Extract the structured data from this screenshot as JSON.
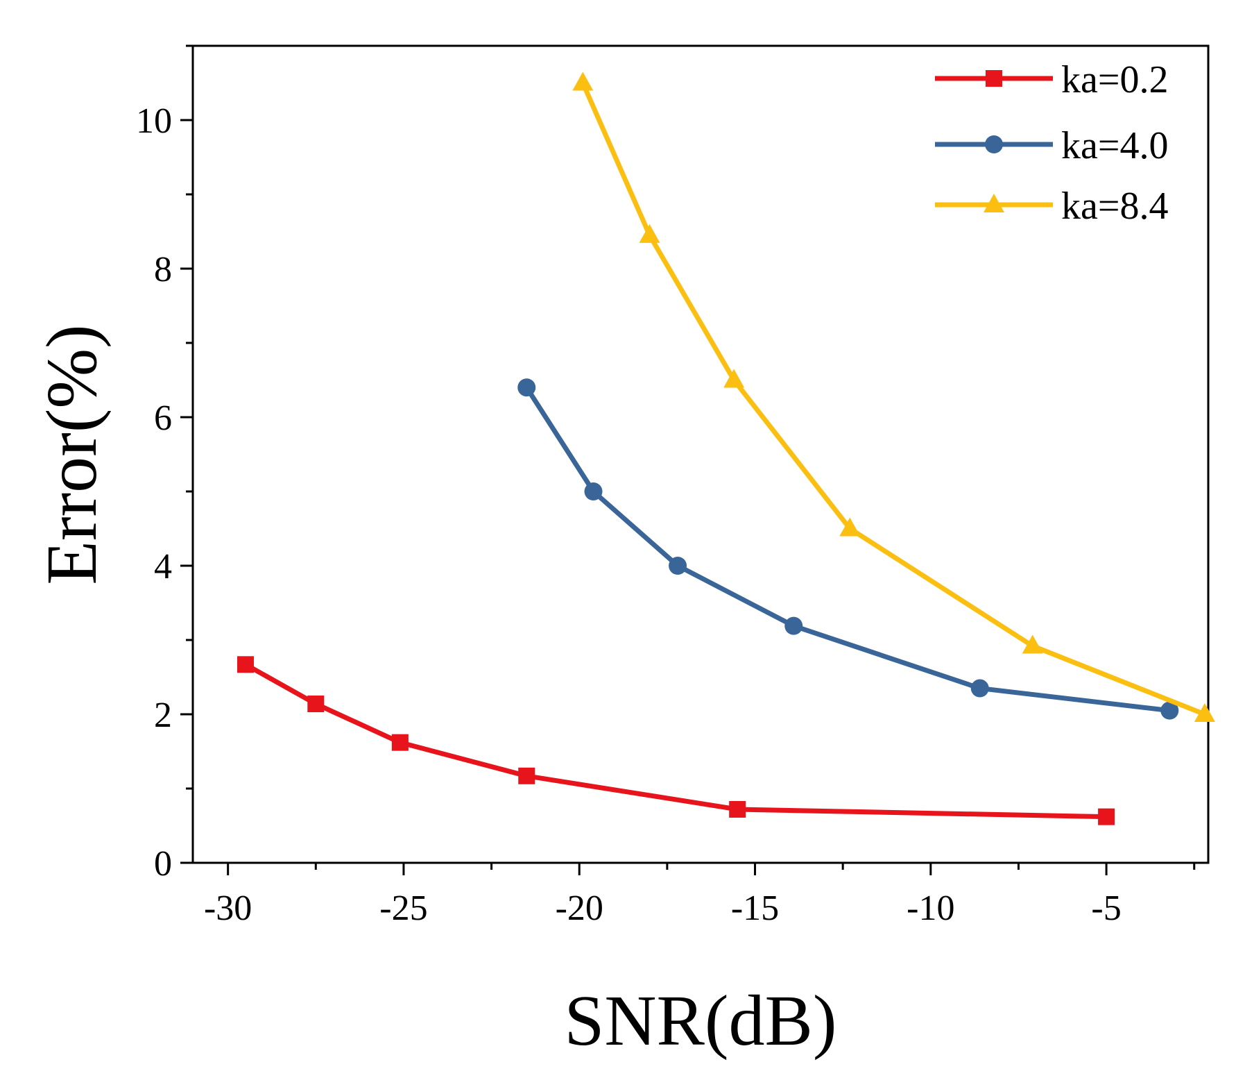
{
  "chart_data": {
    "type": "line",
    "xlabel": "SNR(dB)",
    "ylabel": "Error(%)",
    "xlim": [
      -31,
      -2.1
    ],
    "ylim": [
      0,
      11
    ],
    "xticks": [
      -30,
      -25,
      -20,
      -15,
      -10,
      -5
    ],
    "xtick_labels": [
      "-30",
      "-25",
      "-20",
      "-15",
      "-10",
      "-5"
    ],
    "xminor": [
      -27.5,
      -22.5,
      -17.5,
      -12.5,
      -7.5,
      -2.5
    ],
    "yticks": [
      0,
      2,
      4,
      6,
      8,
      10
    ],
    "ytick_labels": [
      "0",
      "2",
      "4",
      "6",
      "8",
      "10"
    ],
    "yminor": [
      1,
      3,
      5,
      7,
      9,
      11
    ],
    "legend_position": "top-right",
    "series": [
      {
        "name": "ka=0.2",
        "color": "#e8141c",
        "marker": "square",
        "x": [
          -29.5,
          -27.5,
          -25.1,
          -21.5,
          -15.5,
          -5.0
        ],
        "y": [
          2.67,
          2.14,
          1.62,
          1.17,
          0.72,
          0.62
        ]
      },
      {
        "name": "ka=4.0",
        "color": "#3a6598",
        "marker": "circle",
        "x": [
          -21.5,
          -19.6,
          -17.2,
          -13.9,
          -8.6,
          -3.2
        ],
        "y": [
          6.4,
          5.0,
          4.0,
          3.19,
          2.35,
          2.05
        ]
      },
      {
        "name": "ka=8.4",
        "color": "#fbbf12",
        "marker": "triangle",
        "x": [
          -19.9,
          -18.0,
          -15.6,
          -12.3,
          -7.1,
          -2.2
        ],
        "y": [
          10.5,
          8.45,
          6.5,
          4.5,
          2.92,
          2.0
        ]
      }
    ]
  }
}
